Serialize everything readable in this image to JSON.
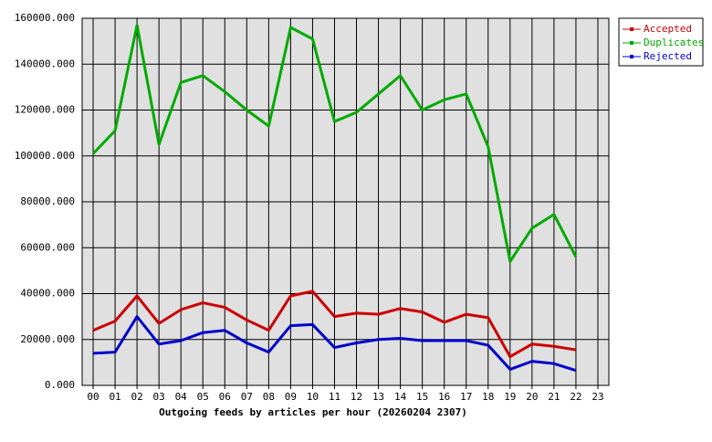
{
  "chart_data": {
    "type": "line",
    "xlabel": "Outgoing feeds by articles per hour (20260204 2307)",
    "categories": [
      "00",
      "01",
      "02",
      "03",
      "04",
      "05",
      "06",
      "07",
      "08",
      "09",
      "10",
      "11",
      "12",
      "13",
      "14",
      "15",
      "16",
      "17",
      "18",
      "19",
      "20",
      "21",
      "22",
      "23"
    ],
    "series": [
      {
        "name": "Accepted",
        "color": "#cc0000",
        "values": [
          24000,
          28000,
          39000,
          27000,
          33000,
          36000,
          34000,
          28500,
          24000,
          39000,
          41000,
          30000,
          31500,
          31000,
          33500,
          32000,
          27500,
          31000,
          29500,
          12500,
          18000,
          17000,
          15500,
          null
        ]
      },
      {
        "name": "Duplicates",
        "color": "#00aa00",
        "values": [
          101000,
          111000,
          157000,
          105000,
          132000,
          135000,
          128000,
          120000,
          113000,
          156000,
          151000,
          115000,
          119000,
          127000,
          135000,
          120000,
          124500,
          127000,
          104000,
          54000,
          68500,
          74500,
          56000,
          null
        ]
      },
      {
        "name": "Rejected",
        "color": "#0000cc",
        "values": [
          14000,
          14500,
          30000,
          18000,
          19500,
          23000,
          24000,
          18500,
          14500,
          26000,
          26500,
          16500,
          18500,
          20000,
          20500,
          19500,
          19500,
          19500,
          17500,
          7000,
          10500,
          9500,
          6500,
          null
        ]
      }
    ],
    "ylim": [
      0,
      160000
    ],
    "yticks": [
      {
        "value": 0,
        "label": "0.000"
      },
      {
        "value": 20000,
        "label": "20000.000"
      },
      {
        "value": 40000,
        "label": "40000.000"
      },
      {
        "value": 60000,
        "label": "60000.000"
      },
      {
        "value": 80000,
        "label": "80000.000"
      },
      {
        "value": 100000,
        "label": "100000.000"
      },
      {
        "value": 120000,
        "label": "120000.000"
      },
      {
        "value": 140000,
        "label": "140000.000"
      },
      {
        "value": 160000,
        "label": "160000.000"
      }
    ],
    "grid": true,
    "legend": "right"
  }
}
